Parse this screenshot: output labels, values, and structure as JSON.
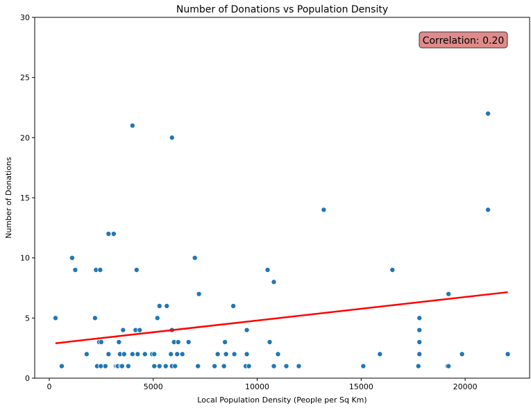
{
  "chart_data": {
    "type": "scatter",
    "title": "Number of Donations vs Population Density",
    "xlabel": "Local Population Density (People per Sq Km)",
    "ylabel": "Number of Donations",
    "xlim": [
      -700,
      23100
    ],
    "ylim": [
      0,
      30
    ],
    "xticks": [
      0,
      5000,
      10000,
      15000,
      20000
    ],
    "yticks": [
      0,
      5,
      10,
      15,
      20,
      25,
      30
    ],
    "grid": false,
    "point_color": "#1f77b4",
    "points": [
      [
        300,
        5
      ],
      [
        600,
        1
      ],
      [
        1100,
        10
      ],
      [
        1250,
        9
      ],
      [
        1800,
        2
      ],
      [
        2200,
        5
      ],
      [
        2250,
        9
      ],
      [
        2300,
        1
      ],
      [
        2400,
        3
      ],
      [
        2450,
        9
      ],
      [
        2480,
        1
      ],
      [
        2500,
        3
      ],
      [
        2700,
        1
      ],
      [
        2850,
        2
      ],
      [
        2850,
        12
      ],
      [
        3100,
        12
      ],
      [
        3200,
        1
      ],
      [
        3250,
        1
      ],
      [
        3300,
        1
      ],
      [
        3350,
        3
      ],
      [
        3400,
        2
      ],
      [
        3450,
        1
      ],
      [
        3500,
        1
      ],
      [
        3550,
        4
      ],
      [
        3600,
        2
      ],
      [
        3800,
        1
      ],
      [
        4000,
        2
      ],
      [
        4000,
        21
      ],
      [
        4150,
        4
      ],
      [
        4200,
        9
      ],
      [
        4250,
        2
      ],
      [
        4350,
        4
      ],
      [
        4600,
        2
      ],
      [
        4950,
        2
      ],
      [
        5050,
        2
      ],
      [
        5050,
        1
      ],
      [
        5200,
        5
      ],
      [
        5300,
        1
      ],
      [
        5300,
        6
      ],
      [
        5600,
        1
      ],
      [
        5650,
        6
      ],
      [
        5850,
        2
      ],
      [
        5900,
        20
      ],
      [
        5900,
        4
      ],
      [
        5900,
        1
      ],
      [
        6000,
        3
      ],
      [
        6050,
        1
      ],
      [
        6150,
        2
      ],
      [
        6200,
        3
      ],
      [
        6400,
        2
      ],
      [
        6700,
        3
      ],
      [
        7000,
        10
      ],
      [
        7150,
        1
      ],
      [
        7200,
        7
      ],
      [
        7950,
        1
      ],
      [
        8100,
        2
      ],
      [
        8400,
        1
      ],
      [
        8450,
        3
      ],
      [
        8500,
        2
      ],
      [
        8850,
        6
      ],
      [
        8900,
        2
      ],
      [
        9450,
        1
      ],
      [
        9500,
        2
      ],
      [
        9500,
        4
      ],
      [
        9600,
        1
      ],
      [
        10500,
        9
      ],
      [
        10600,
        3
      ],
      [
        10800,
        8
      ],
      [
        10800,
        1
      ],
      [
        11000,
        2
      ],
      [
        11400,
        1
      ],
      [
        12000,
        1
      ],
      [
        13200,
        14
      ],
      [
        15100,
        1
      ],
      [
        15900,
        2
      ],
      [
        16500,
        9
      ],
      [
        17750,
        1
      ],
      [
        17800,
        2
      ],
      [
        17800,
        3
      ],
      [
        17800,
        4
      ],
      [
        17800,
        5
      ],
      [
        19150,
        1
      ],
      [
        19200,
        7
      ],
      [
        19200,
        1
      ],
      [
        19850,
        2
      ],
      [
        21100,
        22
      ],
      [
        21100,
        14
      ],
      [
        22050,
        2
      ]
    ],
    "trend_line": {
      "color": "#ff0000",
      "from": [
        300,
        2.9
      ],
      "to": [
        22050,
        7.15
      ]
    },
    "annotation": {
      "text": "Correlation: 0.20",
      "position": "top-right",
      "background": "#e08b8b"
    }
  }
}
